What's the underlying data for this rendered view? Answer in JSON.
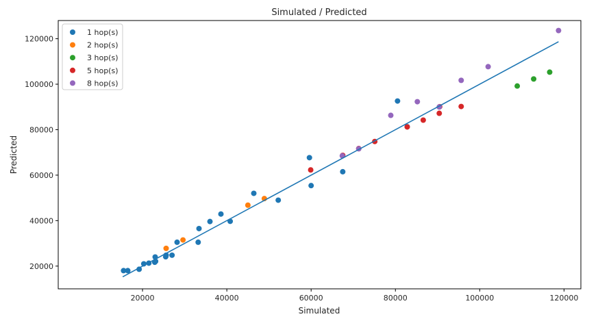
{
  "chart_data": {
    "type": "scatter",
    "title": "Simulated / Predicted",
    "xlabel": "Simulated",
    "ylabel": "Predicted",
    "xlim": [
      0,
      124000
    ],
    "ylim": [
      10000,
      128000
    ],
    "xticks": [
      20000,
      40000,
      60000,
      80000,
      100000,
      120000
    ],
    "yticks": [
      20000,
      40000,
      60000,
      80000,
      100000,
      120000
    ],
    "grid": false,
    "legend_position": "top-left",
    "fit_line": {
      "color": "#1f77b4",
      "points": [
        [
          15300,
          15300
        ],
        [
          118700,
          118700
        ]
      ]
    },
    "series": [
      {
        "name": "1 hop(s)",
        "color": "#1f77b4",
        "points": [
          [
            15500,
            18000
          ],
          [
            16500,
            18000
          ],
          [
            19200,
            18600
          ],
          [
            20300,
            21000
          ],
          [
            21500,
            21300
          ],
          [
            22900,
            21700
          ],
          [
            23000,
            24000
          ],
          [
            23100,
            22100
          ],
          [
            25500,
            24100
          ],
          [
            25600,
            24800
          ],
          [
            27000,
            24800
          ],
          [
            28200,
            30500
          ],
          [
            33200,
            30500
          ],
          [
            33400,
            36500
          ],
          [
            36000,
            39600
          ],
          [
            38600,
            42900
          ],
          [
            40800,
            39700
          ],
          [
            46400,
            52000
          ],
          [
            52200,
            49000
          ],
          [
            59600,
            67700
          ],
          [
            60000,
            55400
          ],
          [
            67500,
            61500
          ],
          [
            80500,
            92600
          ],
          [
            82800,
            81300
          ]
        ]
      },
      {
        "name": "2 hop(s)",
        "color": "#ff7f0e",
        "points": [
          [
            25600,
            27800
          ],
          [
            29600,
            31500
          ],
          [
            45000,
            46800
          ],
          [
            48900,
            49700
          ]
        ]
      },
      {
        "name": "3 hop(s)",
        "color": "#2ca02c",
        "points": [
          [
            108900,
            99200
          ],
          [
            112800,
            102300
          ],
          [
            116600,
            105300
          ]
        ]
      },
      {
        "name": "5 hop(s)",
        "color": "#d62728",
        "points": [
          [
            59900,
            62300
          ],
          [
            67500,
            68700
          ],
          [
            71300,
            71700
          ],
          [
            75100,
            74800
          ],
          [
            82800,
            81200
          ],
          [
            86600,
            84200
          ],
          [
            90400,
            87200
          ],
          [
            90500,
            90100
          ],
          [
            95600,
            90200
          ]
        ]
      },
      {
        "name": "8 hop(s)",
        "color": "#9467bd",
        "points": [
          [
            67400,
            68500
          ],
          [
            71300,
            71600
          ],
          [
            78900,
            86300
          ],
          [
            85200,
            92300
          ],
          [
            90400,
            90000
          ],
          [
            95600,
            101700
          ],
          [
            102000,
            107700
          ],
          [
            118700,
            123600
          ]
        ]
      }
    ]
  }
}
